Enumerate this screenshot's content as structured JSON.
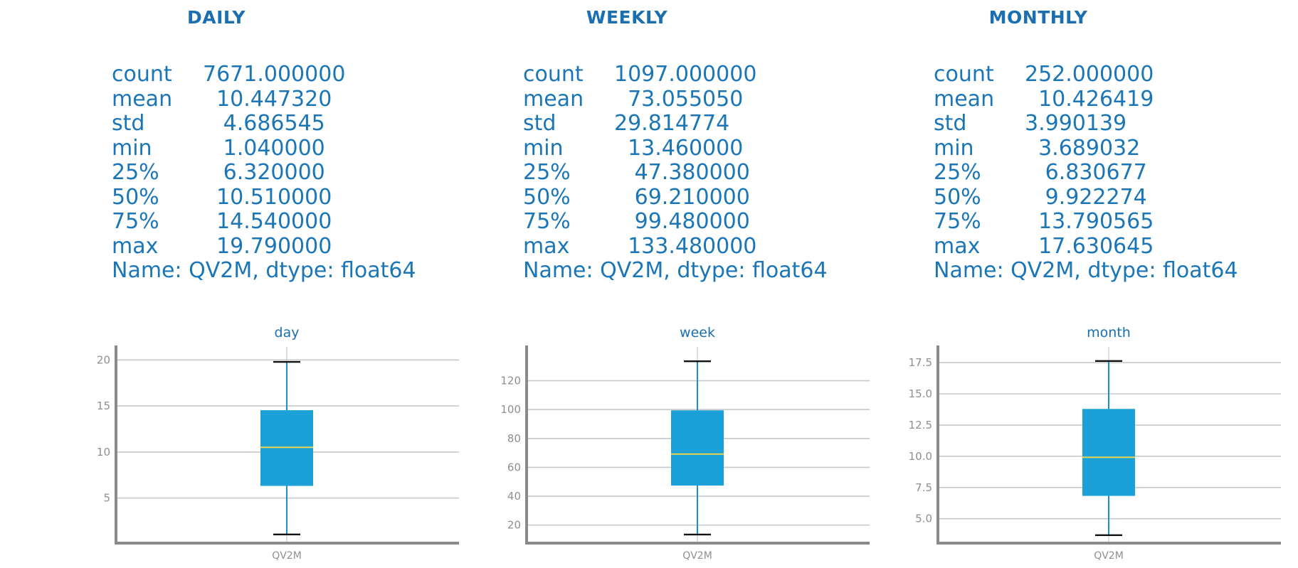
{
  "colors": {
    "title": "#1a6fb0",
    "stats_text": "#1b76b8",
    "box_fill": "#1ba1d7",
    "median": "#e8d44d",
    "whisker": "#1a8fcf",
    "cap": "#111111",
    "grid": "#c8c8c8",
    "axis": "#8a8a8a",
    "tick_text": "#8f8f8f"
  },
  "panels": [
    {
      "heading": "DAILY",
      "stats": [
        {
          "label": "count",
          "value": "7671.000000"
        },
        {
          "label": "mean",
          "value": "  10.447320"
        },
        {
          "label": "std",
          "value": "   4.686545"
        },
        {
          "label": "min",
          "value": "   1.040000"
        },
        {
          "label": "25%",
          "value": "   6.320000"
        },
        {
          "label": "50%",
          "value": "  10.510000"
        },
        {
          "label": "75%",
          "value": "  14.540000"
        },
        {
          "label": "max",
          "value": "  19.790000"
        }
      ],
      "name_line": "Name: QV2M, dtype: float64"
    },
    {
      "heading": "WEEKLY",
      "stats": [
        {
          "label": "count",
          "value": "1097.000000"
        },
        {
          "label": "mean",
          "value": "  73.055050"
        },
        {
          "label": "std",
          "value": "29.814774"
        },
        {
          "label": "min",
          "value": "  13.460000"
        },
        {
          "label": "25%",
          "value": "   47.380000"
        },
        {
          "label": "50%",
          "value": "   69.210000"
        },
        {
          "label": "75%",
          "value": "   99.480000"
        },
        {
          "label": "max",
          "value": "  133.480000"
        }
      ],
      "name_line": "Name: QV2M, dtype: float64"
    },
    {
      "heading": "MONTHLY",
      "stats": [
        {
          "label": "count",
          "value": "252.000000"
        },
        {
          "label": "mean",
          "value": "  10.426419"
        },
        {
          "label": "std",
          "value": "3.990139"
        },
        {
          "label": "min",
          "value": "  3.689032"
        },
        {
          "label": "25%",
          "value": "   6.830677"
        },
        {
          "label": "50%",
          "value": "   9.922274"
        },
        {
          "label": "75%",
          "value": "  13.790565"
        },
        {
          "label": "max",
          "value": "  17.630645"
        }
      ],
      "name_line": "Name: QV2M, dtype: float64"
    }
  ],
  "chart_data": [
    {
      "type": "box",
      "title": "day",
      "categories": [
        "QV2M"
      ],
      "ylim": [
        0.1,
        20.8
      ],
      "yticks": [
        5,
        10,
        15,
        20
      ],
      "ytick_labels": [
        "5",
        "10",
        "15",
        "20"
      ],
      "grid": "horizontal",
      "box": {
        "min": 1.04,
        "q1": 6.32,
        "median": 10.51,
        "q3": 14.54,
        "max": 19.79
      }
    },
    {
      "type": "box",
      "title": "week",
      "categories": [
        "QV2M"
      ],
      "ylim": [
        7.5,
        139.5
      ],
      "yticks": [
        20,
        40,
        60,
        80,
        100,
        120
      ],
      "ytick_labels": [
        "20",
        "40",
        "60",
        "80",
        "100",
        "120"
      ],
      "grid": "horizontal",
      "box": {
        "min": 13.46,
        "q1": 47.38,
        "median": 69.21,
        "q3": 99.48,
        "max": 133.48
      }
    },
    {
      "type": "box",
      "title": "month",
      "categories": [
        "QV2M"
      ],
      "ylim": [
        3.05,
        18.3
      ],
      "yticks": [
        5.0,
        7.5,
        10.0,
        12.5,
        15.0,
        17.5
      ],
      "ytick_labels": [
        "5.0",
        "7.5",
        "10.0",
        "12.5",
        "15.0",
        "17.5"
      ],
      "grid": "horizontal",
      "box": {
        "min": 3.689032,
        "q1": 6.830677,
        "median": 9.922274,
        "q3": 13.790565,
        "max": 17.630645
      }
    }
  ]
}
